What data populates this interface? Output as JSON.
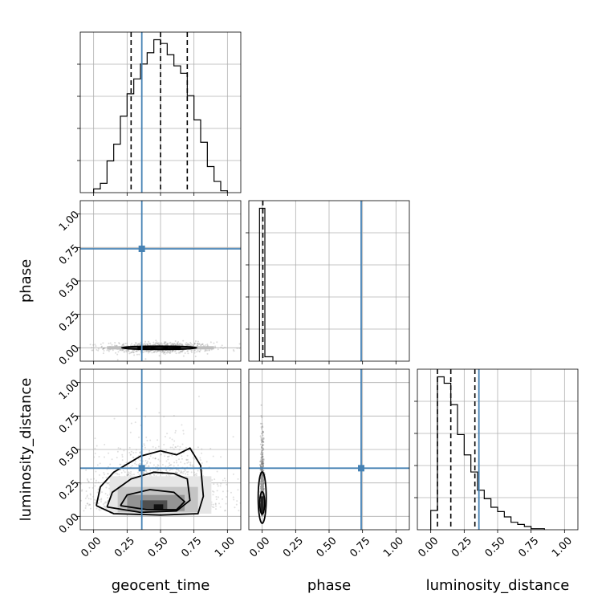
{
  "chart_data": {
    "type": "corner",
    "parameters": [
      "geocent_time",
      "phase",
      "luminosity_distance"
    ],
    "axis_range": [
      -0.1,
      1.1
    ],
    "ticks": [
      0.0,
      0.25,
      0.5,
      0.75,
      1.0
    ],
    "tick_labels": [
      "0.00",
      "0.25",
      "0.50",
      "0.75",
      "1.00"
    ],
    "truths": {
      "geocent_time": 0.36,
      "phase": 0.74,
      "luminosity_distance": 0.36
    },
    "truth_color": "#4682b4",
    "grid": true,
    "diagonal": [
      {
        "parameter": "geocent_time",
        "bin_edges": [
          0.0,
          0.05,
          0.1,
          0.15,
          0.2,
          0.25,
          0.3,
          0.35,
          0.4,
          0.45,
          0.5,
          0.55,
          0.6,
          0.65,
          0.7,
          0.75,
          0.8,
          0.85,
          0.9,
          0.95,
          1.0
        ],
        "counts": [
          2,
          5,
          17,
          26,
          41,
          53,
          61,
          69,
          75,
          82,
          80,
          74,
          68,
          64,
          52,
          39,
          27,
          14,
          6,
          1
        ],
        "quantiles": [
          0.28,
          0.5,
          0.7
        ]
      },
      {
        "parameter": "phase",
        "bin_edges": [
          -0.02,
          0.02,
          0.08
        ],
        "counts": [
          173,
          5
        ],
        "quantiles": [
          0.005
        ]
      },
      {
        "parameter": "luminosity_distance",
        "bin_edges": [
          0.0,
          0.05,
          0.1,
          0.15,
          0.2,
          0.25,
          0.3,
          0.35,
          0.4,
          0.45,
          0.5,
          0.55,
          0.6,
          0.65,
          0.7,
          0.75,
          0.8,
          0.85
        ],
        "counts": [
          18,
          143,
          137,
          117,
          89,
          70,
          54,
          37,
          29,
          21,
          17,
          12,
          7,
          5,
          3,
          1,
          1
        ],
        "quantiles": [
          0.05,
          0.15,
          0.33
        ]
      }
    ],
    "pairs": [
      {
        "x": "geocent_time",
        "y": "phase",
        "center": [
          0.49,
          0.0
        ],
        "spread": [
          0.2,
          0.012
        ],
        "levels": [
          [
            0.06,
            0.003
          ],
          [
            0.16,
            0.007
          ],
          [
            0.28,
            0.012
          ]
        ]
      },
      {
        "x": "geocent_time",
        "y": "luminosity_distance",
        "center": [
          0.47,
          0.16
        ],
        "spread": [
          0.24,
          0.18
        ]
      },
      {
        "x": "phase",
        "y": "luminosity_distance",
        "center": [
          0.0,
          0.16
        ],
        "spread": [
          0.006,
          0.2
        ]
      }
    ]
  }
}
